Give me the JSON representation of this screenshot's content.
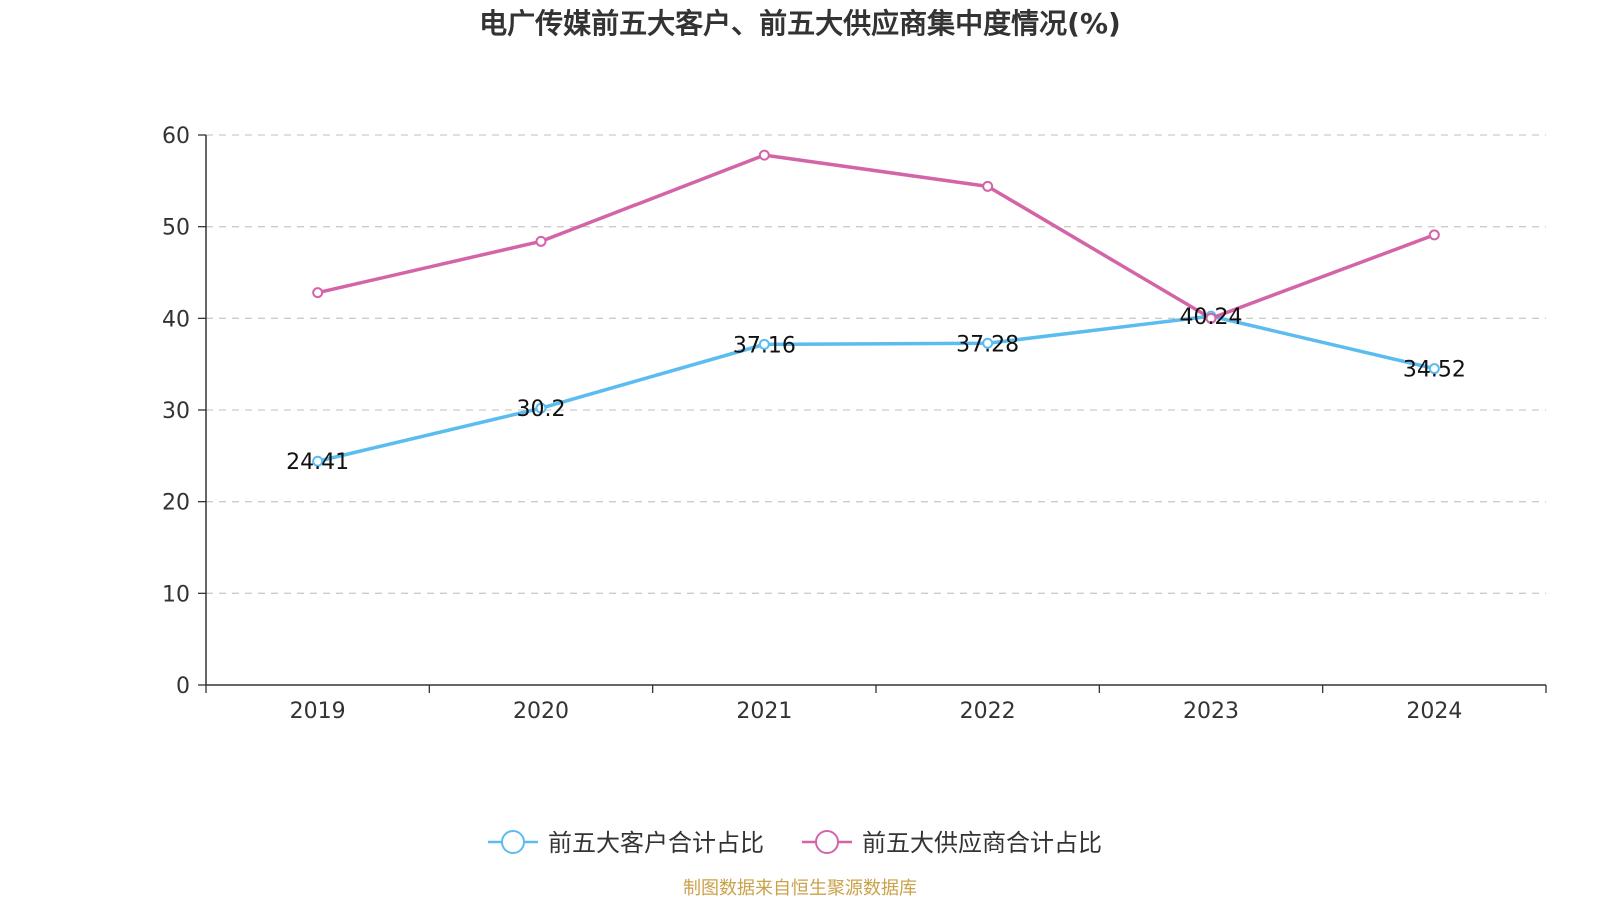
{
  "chart_data": {
    "type": "line",
    "title": "电广传媒前五大客户、前五大供应商集中度情况(%)",
    "categories": [
      "2019",
      "2020",
      "2021",
      "2022",
      "2023",
      "2024"
    ],
    "ylim": [
      0,
      60
    ],
    "yticks": [
      0,
      10,
      20,
      30,
      40,
      50,
      60
    ],
    "ytick_labels": [
      "0",
      "10",
      "20",
      "30",
      "40",
      "50",
      "60"
    ],
    "grid": true,
    "legend": "bottom",
    "series": [
      {
        "name": "前五大客户合计占比",
        "color": "#5bbcf0",
        "values": [
          24.41,
          30.2,
          37.16,
          37.28,
          40.24,
          34.52
        ],
        "labels": [
          "24.41",
          "30.2",
          "37.16",
          "37.28",
          "40.24",
          "34.52"
        ],
        "show_labels": true
      },
      {
        "name": "前五大供应商合计占比",
        "color": "#d464a8",
        "values": [
          42.8,
          48.4,
          57.8,
          54.4,
          40.0,
          49.1
        ],
        "show_labels": false
      }
    ],
    "source": "制图数据来自恒生聚源数据库"
  }
}
